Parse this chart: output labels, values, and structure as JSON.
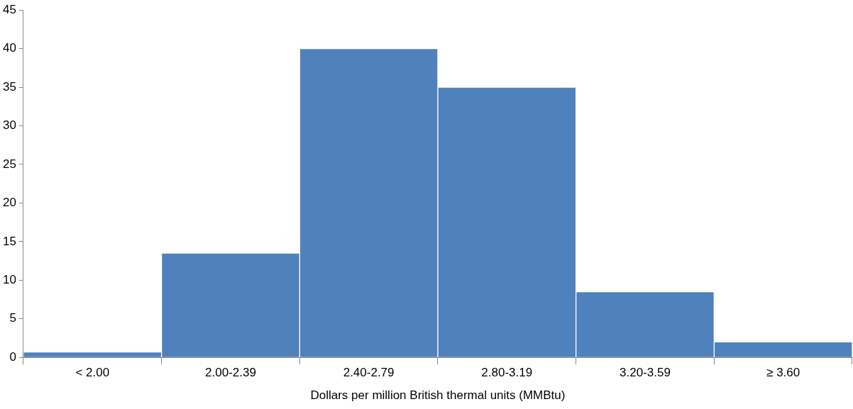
{
  "chart_data": {
    "type": "bar",
    "xlabel": "Dollars per million British thermal units (MMBtu)",
    "categories": [
      "< 2.00",
      "2.00-2.39",
      "2.40-2.79",
      "2.80-3.19",
      "3.20-3.59",
      "≥ 3.60"
    ],
    "values": [
      0.7,
      13.5,
      40,
      35,
      8.5,
      2
    ],
    "color": "#4f81bd",
    "ylim": [
      0,
      45
    ],
    "yticks": [
      0,
      5,
      10,
      15,
      20,
      25,
      30,
      35,
      40,
      45
    ],
    "grid": false,
    "legend": false
  }
}
